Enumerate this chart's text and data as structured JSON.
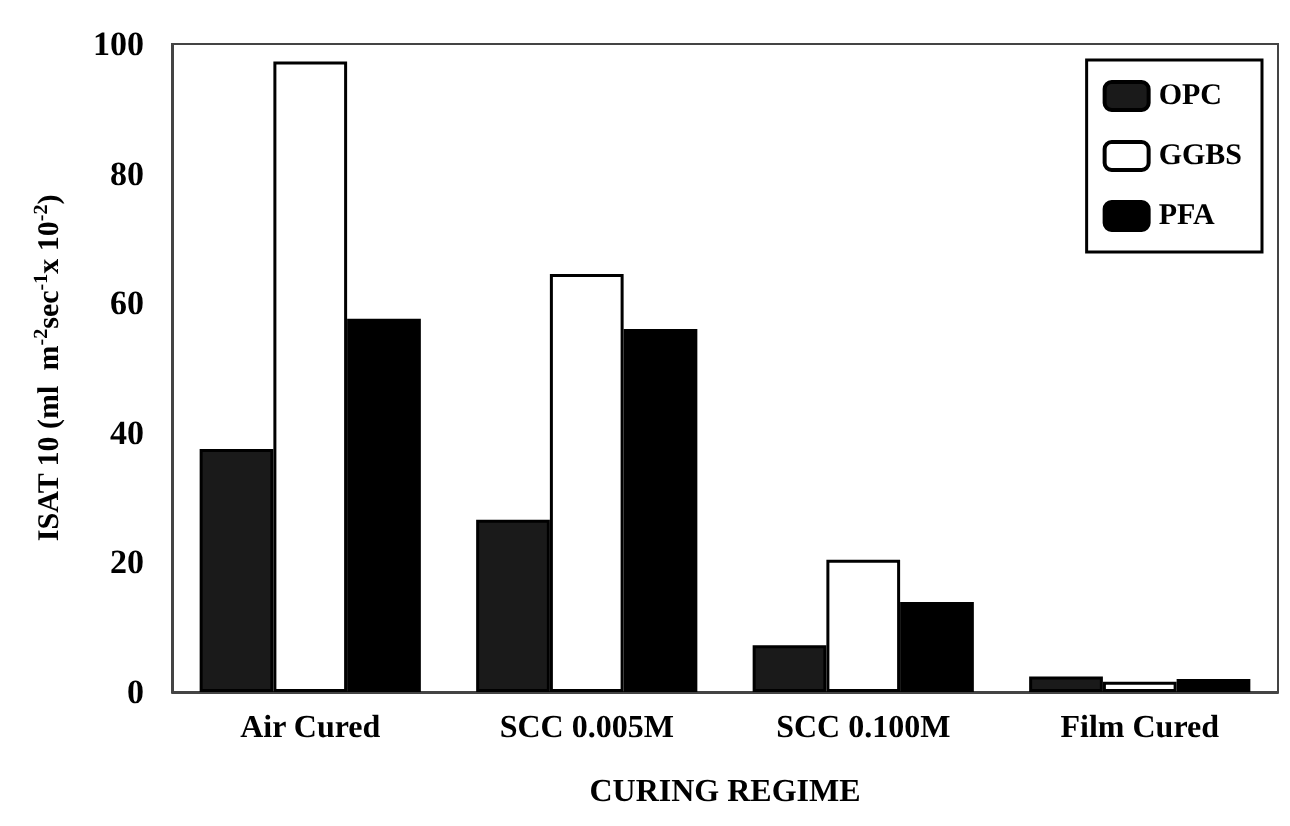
{
  "chart_data": {
    "type": "bar",
    "xlabel": "CURING REGIME",
    "ylabel": "ISAT 10 (ml  m$^{-2}$sec$^{-1}$x 10$^{-2}$)",
    "categories": [
      "Air Cured",
      "SCC 0.005M",
      "SCC 0.100M",
      "Film Cured"
    ],
    "series": [
      {
        "name": "OPC",
        "color": "#1a1a1a",
        "values": [
          37.5,
          26.6,
          7.2,
          2.4
        ]
      },
      {
        "name": "GGBS",
        "color": "#ffffff",
        "values": [
          97.3,
          64.5,
          20.4,
          1.6
        ]
      },
      {
        "name": "PFA",
        "color": "#000000",
        "values": [
          57.6,
          56,
          13.9,
          2.0
        ]
      }
    ],
    "ylim": [
      0,
      100
    ],
    "yticks": [
      0,
      20,
      40,
      60,
      80,
      100
    ],
    "grid": false,
    "legend": "top right"
  }
}
